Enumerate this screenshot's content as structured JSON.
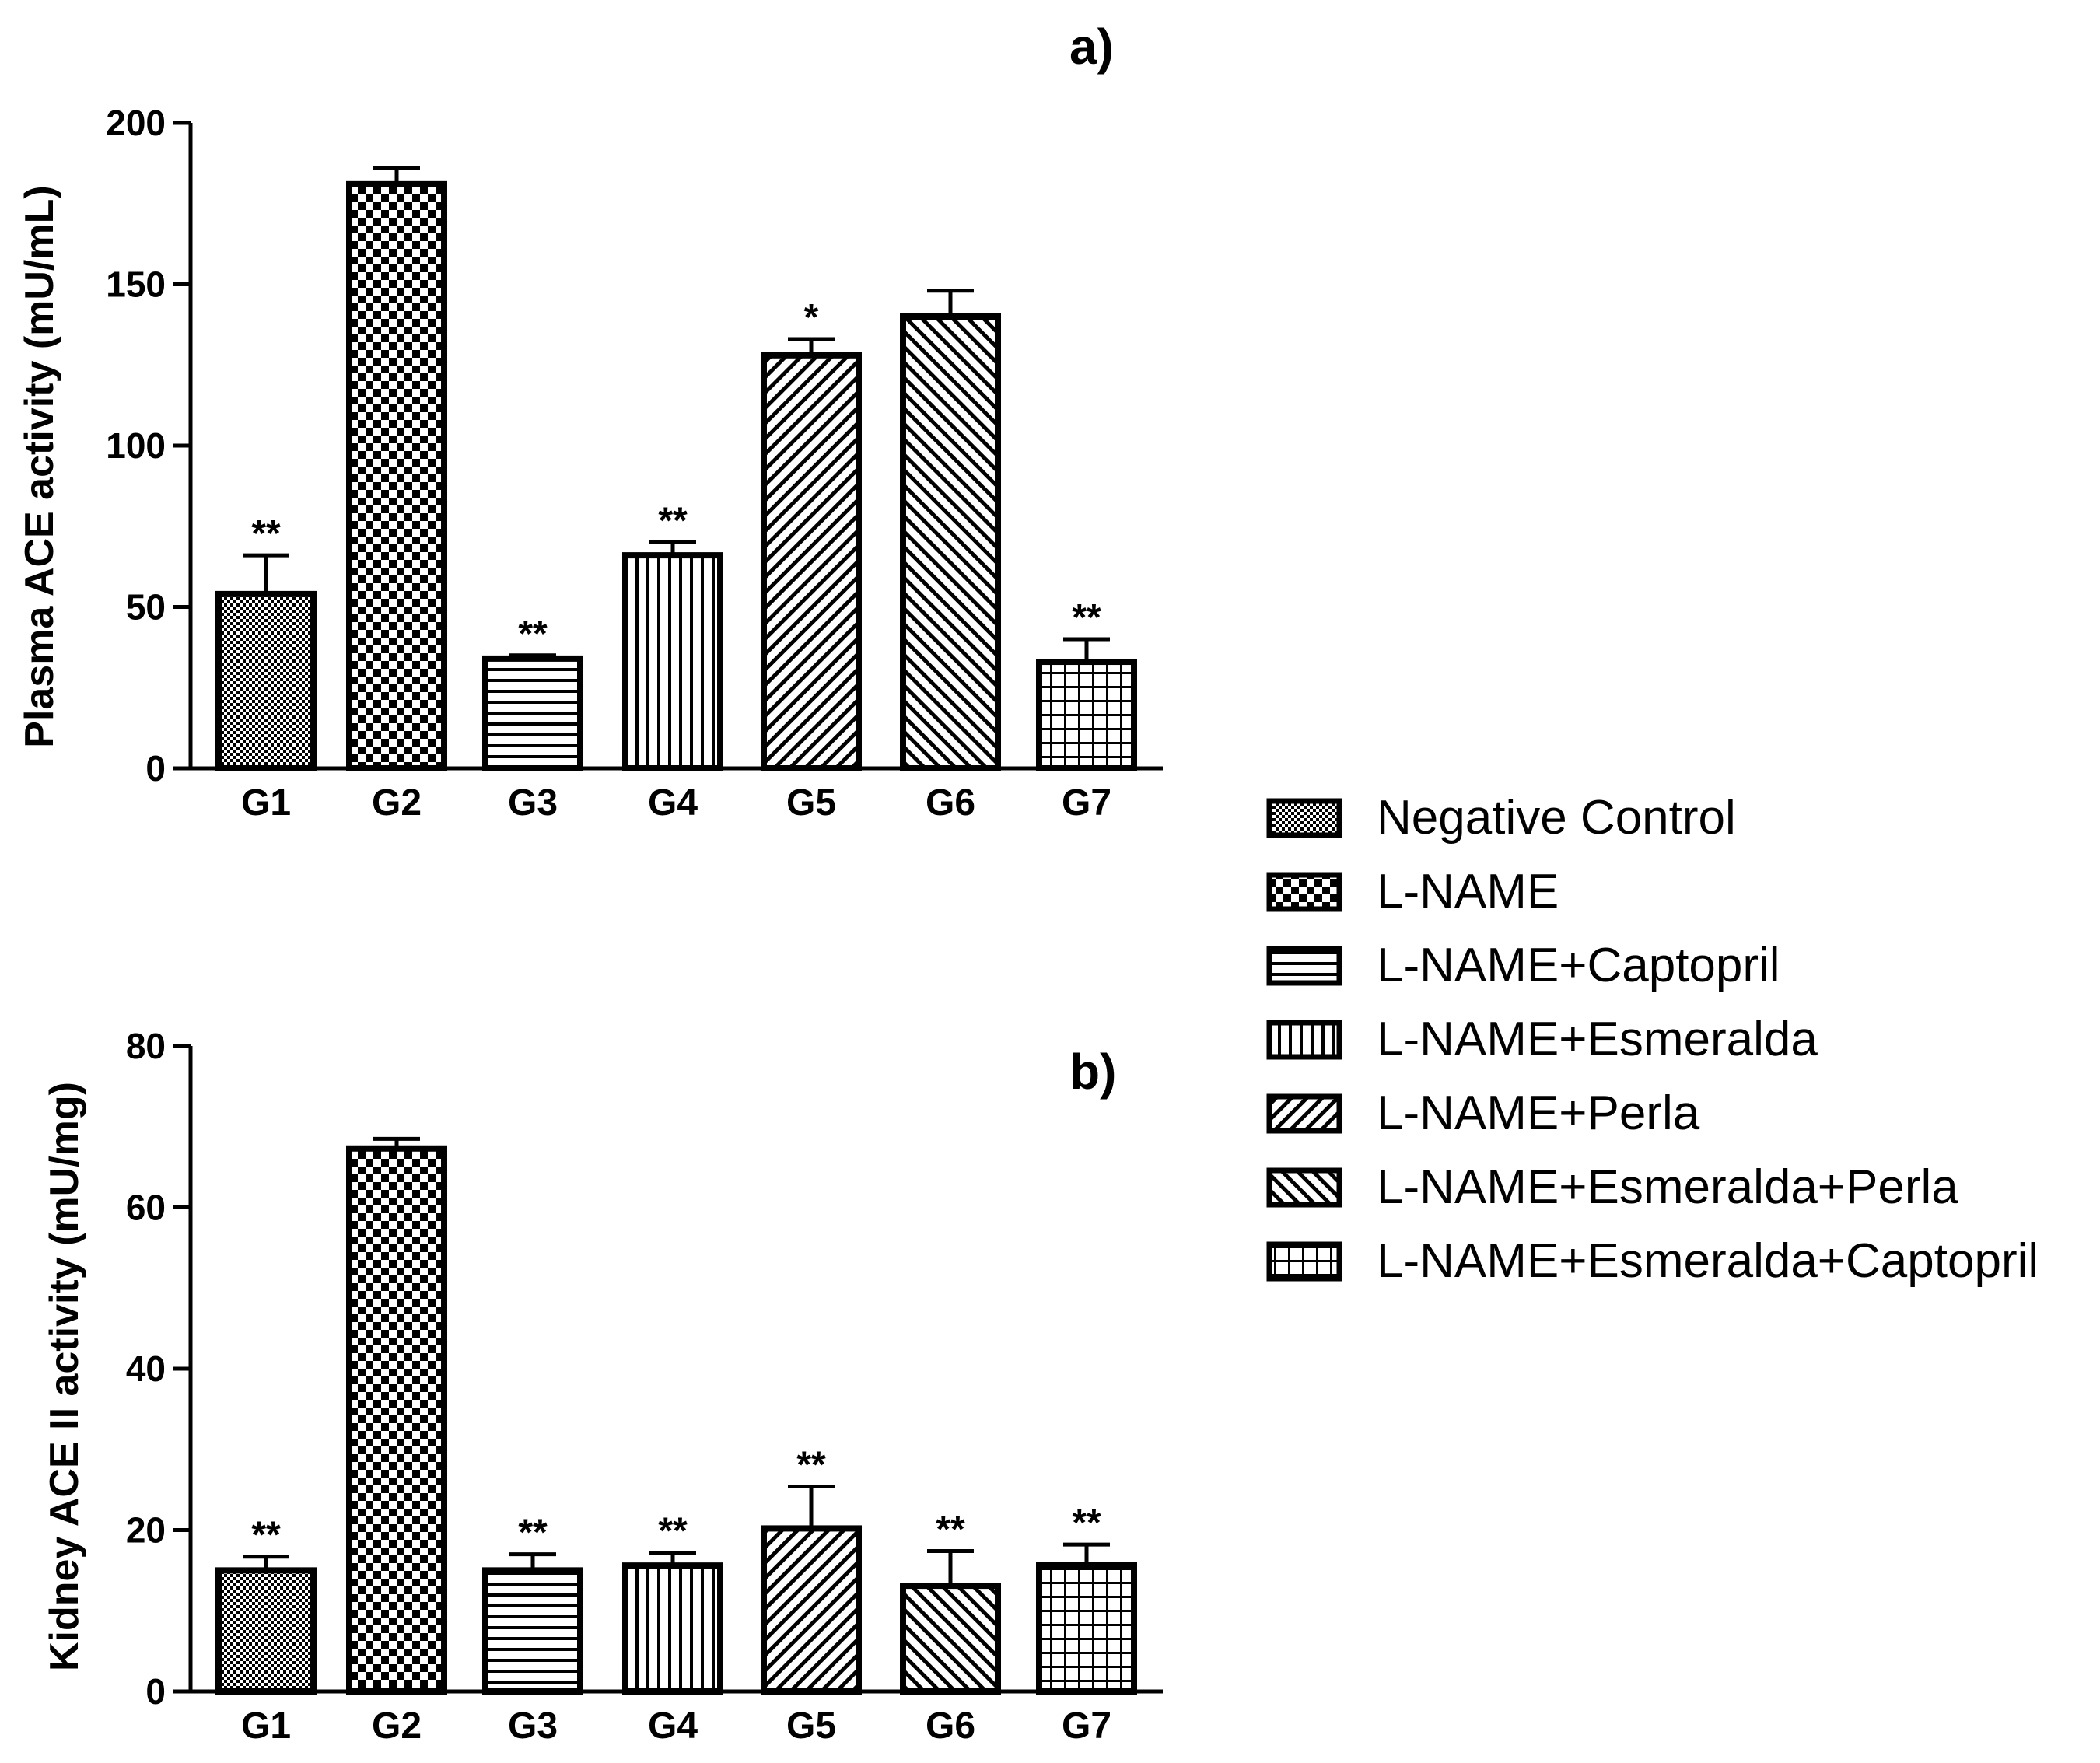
{
  "chart_data": [
    {
      "type": "bar",
      "panel_label": "a)",
      "ylabel": "Plasma ACE activity (mU/mL)",
      "xlabel": "",
      "ylim": [
        0,
        200
      ],
      "yticks": [
        0,
        50,
        100,
        150,
        200
      ],
      "categories": [
        "G1",
        "G2",
        "G3",
        "G4",
        "G5",
        "G6",
        "G7"
      ],
      "values": [
        54,
        181,
        34,
        66,
        128,
        140,
        33
      ],
      "error": [
        12,
        5,
        1,
        4,
        5,
        8,
        7
      ],
      "significance": [
        "**",
        "",
        "**",
        "**",
        "*",
        "",
        "**"
      ],
      "grid": false
    },
    {
      "type": "bar",
      "panel_label": "b)",
      "ylabel": "Kidney ACE II activity (mU/mg)",
      "xlabel": "",
      "ylim": [
        0,
        80
      ],
      "yticks": [
        0,
        20,
        40,
        60,
        80
      ],
      "categories": [
        "G1",
        "G2",
        "G3",
        "G4",
        "G5",
        "G6",
        "G7"
      ],
      "values": [
        15,
        67.3,
        15,
        15.6,
        20.2,
        13.1,
        15.7
      ],
      "error": [
        1.7,
        1.2,
        2,
        1.6,
        5.2,
        4.3,
        2.5
      ],
      "significance": [
        "**",
        "",
        "**",
        "**",
        "**",
        "**",
        "**"
      ],
      "grid": false
    }
  ],
  "legend": {
    "position": "right",
    "items": [
      {
        "label": "Negative Control",
        "pattern": "fine-check"
      },
      {
        "label": "L-NAME",
        "pattern": "coarse-check"
      },
      {
        "label": "L-NAME+Captopril",
        "pattern": "horizontal-lines"
      },
      {
        "label": "L-NAME+Esmeralda",
        "pattern": "vertical-lines"
      },
      {
        "label": "L-NAME+Perla",
        "pattern": "diagonal-up"
      },
      {
        "label": "L-NAME+Esmeralda+Perla",
        "pattern": "diagonal-down"
      },
      {
        "label": "L-NAME+Esmeralda+Captopril",
        "pattern": "grid"
      }
    ]
  },
  "colors": {
    "ink": "#000000",
    "background": "#ffffff"
  }
}
